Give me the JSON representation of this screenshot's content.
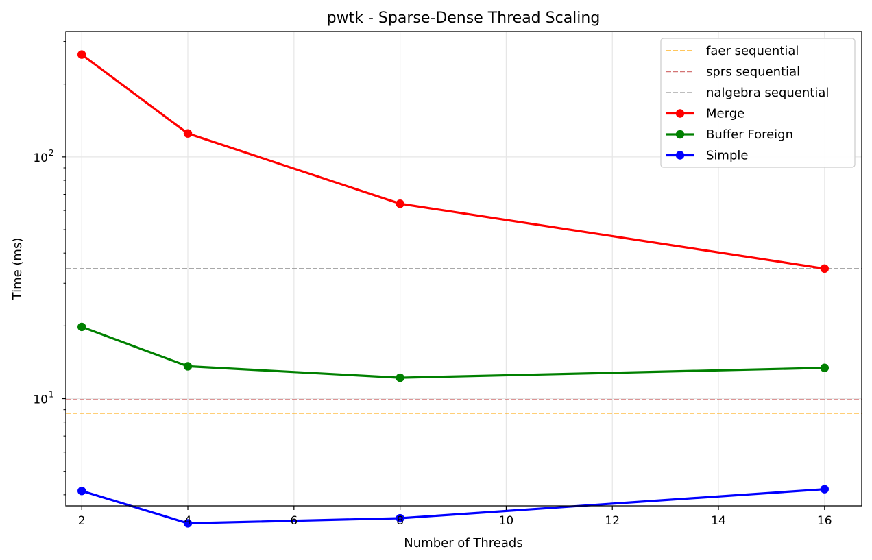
{
  "chart_data": {
    "type": "line",
    "title": "pwtk - Sparse-Dense Thread Scaling",
    "xlabel": "Number of Threads",
    "ylabel": "Time (ms)",
    "y_scale": "log",
    "xlim": [
      1.7,
      16.7
    ],
    "ylim": [
      3.6,
      330
    ],
    "grid": true,
    "legend_position": "top-right",
    "x_ticks": [
      2,
      4,
      6,
      8,
      10,
      12,
      14,
      16
    ],
    "y_ticks": [
      {
        "value": 10,
        "base": "10",
        "exp": "1"
      },
      {
        "value": 100,
        "base": "10",
        "exp": "2"
      }
    ],
    "x": [
      2,
      4,
      8,
      16
    ],
    "reference_lines": [
      {
        "name": "faer sequential",
        "value": 8.7,
        "color": "#ffa500"
      },
      {
        "name": "sprs sequential",
        "value": 9.9,
        "color": "#cd5c5c"
      },
      {
        "name": "nalgebra sequential",
        "value": 34.5,
        "color": "#999999"
      }
    ],
    "series": [
      {
        "name": "Merge",
        "color": "#ff0000",
        "values": [
          265,
          125,
          64,
          34.5
        ]
      },
      {
        "name": "Buffer Foreign",
        "color": "#008000",
        "values": [
          19.8,
          13.6,
          12.2,
          13.4
        ]
      },
      {
        "name": "Simple",
        "color": "#0000ff",
        "values": [
          4.15,
          3.05,
          3.2,
          4.22
        ]
      }
    ]
  }
}
